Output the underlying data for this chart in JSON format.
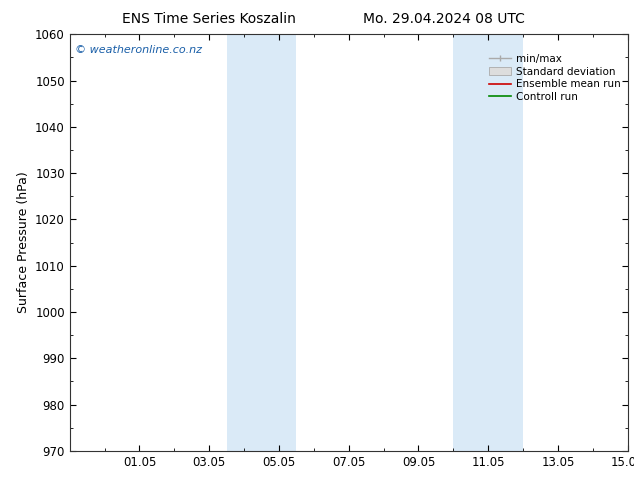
{
  "title_left": "ENS Time Series Koszalin",
  "title_right": "Mo. 29.04.2024 08 UTC",
  "ylabel": "Surface Pressure (hPa)",
  "ylim": [
    970,
    1060
  ],
  "yticks": [
    970,
    980,
    990,
    1000,
    1010,
    1020,
    1030,
    1040,
    1050,
    1060
  ],
  "xlim_start": 0.0,
  "xlim_end": 16.0,
  "xtick_labels": [
    "01.05",
    "03.05",
    "05.05",
    "07.05",
    "09.05",
    "11.05",
    "13.05",
    "15.05"
  ],
  "xtick_positions": [
    2,
    4,
    6,
    8,
    10,
    12,
    14,
    16
  ],
  "shade_bands": [
    {
      "x_start": 4.5,
      "x_end": 6.5,
      "color": "#daeaf7"
    },
    {
      "x_start": 11.0,
      "x_end": 13.0,
      "color": "#daeaf7"
    }
  ],
  "watermark": "© weatheronline.co.nz",
  "watermark_color": "#1a5fa8",
  "legend_items": [
    "min/max",
    "Standard deviation",
    "Ensemble mean run",
    "Controll run"
  ],
  "legend_line_colors": [
    "#aaaaaa",
    "#cccccc",
    "#cc0000",
    "#008800"
  ],
  "bg_color": "#ffffff",
  "plot_bg_color": "#ffffff",
  "title_fontsize": 10,
  "label_fontsize": 9,
  "tick_fontsize": 8.5,
  "watermark_fontsize": 8
}
